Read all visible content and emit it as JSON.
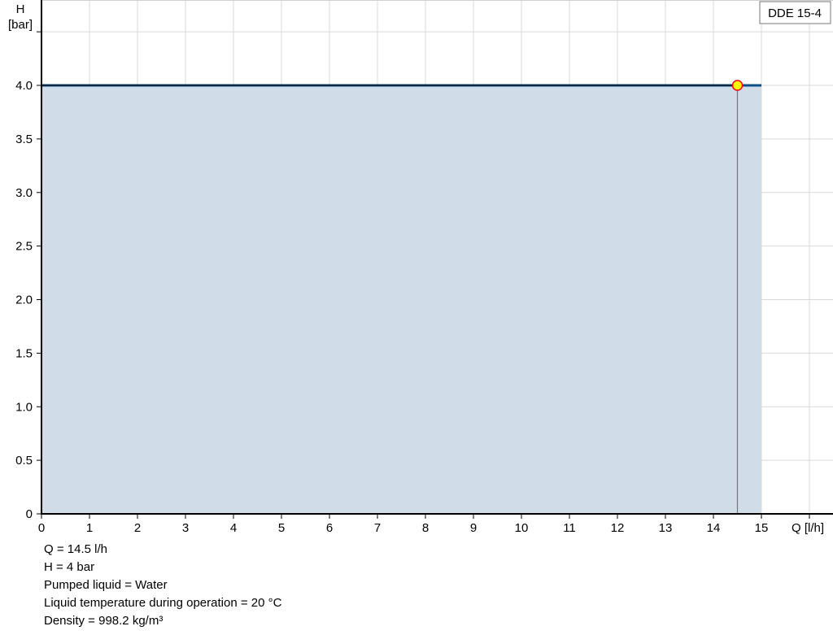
{
  "chart_data": {
    "type": "area",
    "title": "",
    "xlabel": "Q [l/h]",
    "ylabel_line1": "H",
    "ylabel_line2": "[bar]",
    "xlim": [
      0,
      16
    ],
    "ylim": [
      0,
      4.5
    ],
    "grid": true,
    "x_ticks": [
      "0",
      "1",
      "2",
      "3",
      "4",
      "5",
      "6",
      "7",
      "8",
      "9",
      "10",
      "11",
      "12",
      "13",
      "14",
      "15"
    ],
    "y_ticks": [
      "0",
      "0.5",
      "1.0",
      "1.5",
      "2.0",
      "2.5",
      "3.0",
      "3.5",
      "4.0"
    ],
    "series": [
      {
        "name": "DDE 15-4",
        "x": [
          0,
          15
        ],
        "y": [
          4.0,
          4.0
        ],
        "color": "#0b4f8a",
        "fill": "#d0dce7"
      }
    ],
    "operating_point": {
      "x": 14.5,
      "y": 4.0,
      "fill": "#ffff00",
      "stroke": "#ff0000"
    },
    "legend": {
      "label": "DDE 15-4",
      "placement": "top-right"
    }
  },
  "info": [
    "Q = 14.5 l/h",
    "H = 4 bar",
    "Pumped liquid = Water",
    "Liquid temperature during operation = 20 °C",
    "Density = 998.2 kg/m³"
  ]
}
